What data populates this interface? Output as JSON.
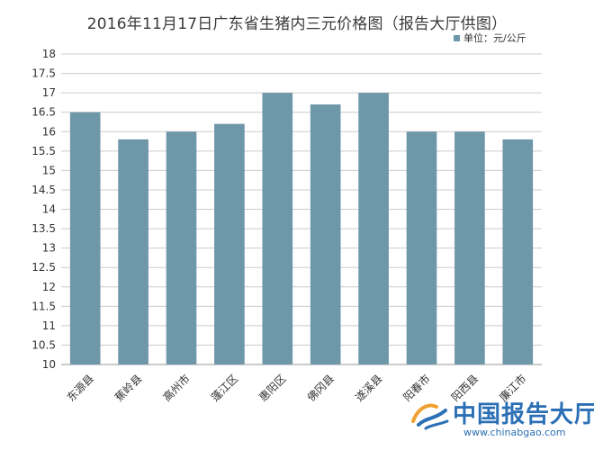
{
  "chart_data": {
    "type": "bar",
    "title": "2016年11月17日广东省生猪内三元价格图（报告大厅供图）",
    "categories": [
      "东源县",
      "蕉岭县",
      "高州市",
      "蓬江区",
      "惠阳区",
      "佛冈县",
      "遂溪县",
      "阳春市",
      "阳西县",
      "廉江市"
    ],
    "series": [
      {
        "name": "单位：元/公斤",
        "values": [
          16.5,
          15.8,
          16.0,
          16.2,
          17.0,
          16.7,
          17.0,
          16.0,
          16.0,
          15.8
        ]
      }
    ],
    "xlabel": "",
    "ylabel": "",
    "ylim": [
      10,
      18
    ],
    "yticks": [
      "10",
      "10.5",
      "11",
      "11.5",
      "12",
      "12.5",
      "13",
      "13.5",
      "14",
      "14.5",
      "15",
      "15.5",
      "16",
      "16.5",
      "17",
      "17.5",
      "18"
    ],
    "grid": true,
    "legend_position": "top-right",
    "bar_color": "#6e97aa",
    "grid_color": "#cccccc"
  },
  "watermark": {
    "name": "中国报告大厅",
    "url": "www.chinabgao.com"
  }
}
